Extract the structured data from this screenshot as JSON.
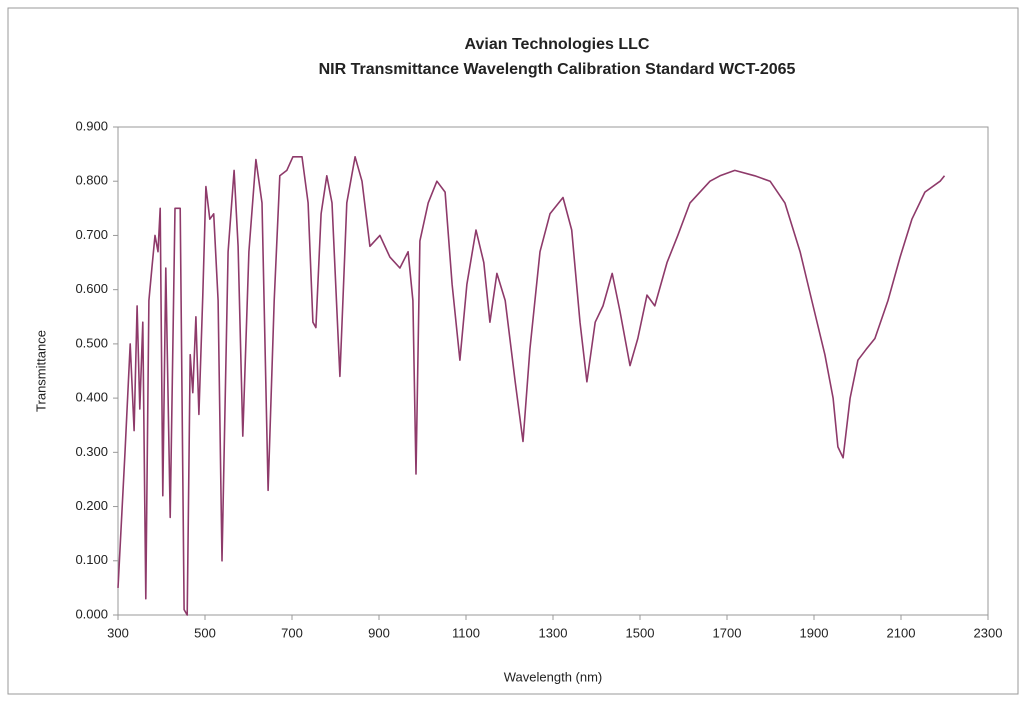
{
  "chart_data": {
    "type": "line",
    "title": "Avian Technologies LLC",
    "subtitle": "NIR Transmittance Wavelength Calibration Standard WCT-2065",
    "x_label": "Wavelength (nm)",
    "y_label": "Transmittance",
    "x": [
      300,
      316,
      328,
      337,
      344,
      350,
      357,
      364,
      371,
      378,
      385,
      392,
      397,
      403,
      410,
      420,
      431,
      443,
      452,
      459,
      466,
      472,
      479,
      486,
      495,
      502,
      511,
      520,
      530,
      539,
      553,
      567,
      576,
      587,
      601,
      617,
      631,
      645,
      659,
      672,
      688,
      702,
      723,
      737,
      748,
      755,
      767,
      780,
      792,
      810,
      826,
      845,
      861,
      879,
      902,
      925,
      948,
      967,
      978,
      985,
      994,
      1013,
      1033,
      1052,
      1068,
      1086,
      1102,
      1123,
      1141,
      1155,
      1171,
      1190,
      1213,
      1231,
      1247,
      1270,
      1293,
      1323,
      1343,
      1362,
      1378,
      1397,
      1415,
      1436,
      1454,
      1477,
      1495,
      1516,
      1534,
      1562,
      1587,
      1615,
      1638,
      1661,
      1684,
      1718,
      1764,
      1799,
      1833,
      1868,
      1895,
      1925,
      1944,
      1955,
      1967,
      1983,
      2001,
      2020,
      2040,
      2070,
      2098,
      2125,
      2155,
      2190,
      2200
    ],
    "series": [
      {
        "name": "WCT-2065",
        "color": "#8e3a6a",
        "values": [
          0.05,
          0.3,
          0.5,
          0.34,
          0.57,
          0.38,
          0.54,
          0.03,
          0.58,
          0.64,
          0.7,
          0.67,
          0.75,
          0.22,
          0.64,
          0.18,
          0.75,
          0.75,
          0.01,
          0.0,
          0.48,
          0.41,
          0.55,
          0.37,
          0.59,
          0.79,
          0.73,
          0.74,
          0.58,
          0.1,
          0.67,
          0.82,
          0.68,
          0.33,
          0.67,
          0.84,
          0.76,
          0.23,
          0.58,
          0.81,
          0.82,
          0.845,
          0.845,
          0.76,
          0.54,
          0.53,
          0.74,
          0.81,
          0.76,
          0.44,
          0.76,
          0.845,
          0.8,
          0.68,
          0.7,
          0.66,
          0.64,
          0.67,
          0.58,
          0.26,
          0.69,
          0.76,
          0.8,
          0.78,
          0.61,
          0.47,
          0.61,
          0.71,
          0.65,
          0.54,
          0.63,
          0.58,
          0.43,
          0.32,
          0.49,
          0.67,
          0.74,
          0.77,
          0.71,
          0.54,
          0.43,
          0.54,
          0.57,
          0.63,
          0.56,
          0.46,
          0.51,
          0.59,
          0.57,
          0.65,
          0.7,
          0.76,
          0.78,
          0.8,
          0.81,
          0.82,
          0.81,
          0.8,
          0.76,
          0.67,
          0.58,
          0.48,
          0.4,
          0.31,
          0.29,
          0.4,
          0.47,
          0.49,
          0.51,
          0.58,
          0.66,
          0.73,
          0.78,
          0.8,
          0.81
        ]
      }
    ],
    "xlim": [
      300,
      2300
    ],
    "xticks": [
      300,
      500,
      700,
      900,
      1100,
      1300,
      1500,
      1700,
      1900,
      2100,
      2300
    ],
    "ylim": [
      0,
      0.9
    ],
    "yticks": [
      {
        "value": 0,
        "label": "0.000"
      },
      {
        "value": 0.1,
        "label": "0.100"
      },
      {
        "value": 0.2,
        "label": "0.200"
      },
      {
        "value": 0.3,
        "label": "0.300"
      },
      {
        "value": 0.4,
        "label": "0.400"
      },
      {
        "value": 0.5,
        "label": "0.500"
      },
      {
        "value": 0.6,
        "label": "0.600"
      },
      {
        "value": 0.7,
        "label": "0.700"
      },
      {
        "value": 0.8,
        "label": "0.800"
      },
      {
        "value": 0.9,
        "label": "0.900"
      }
    ],
    "grid": false
  }
}
